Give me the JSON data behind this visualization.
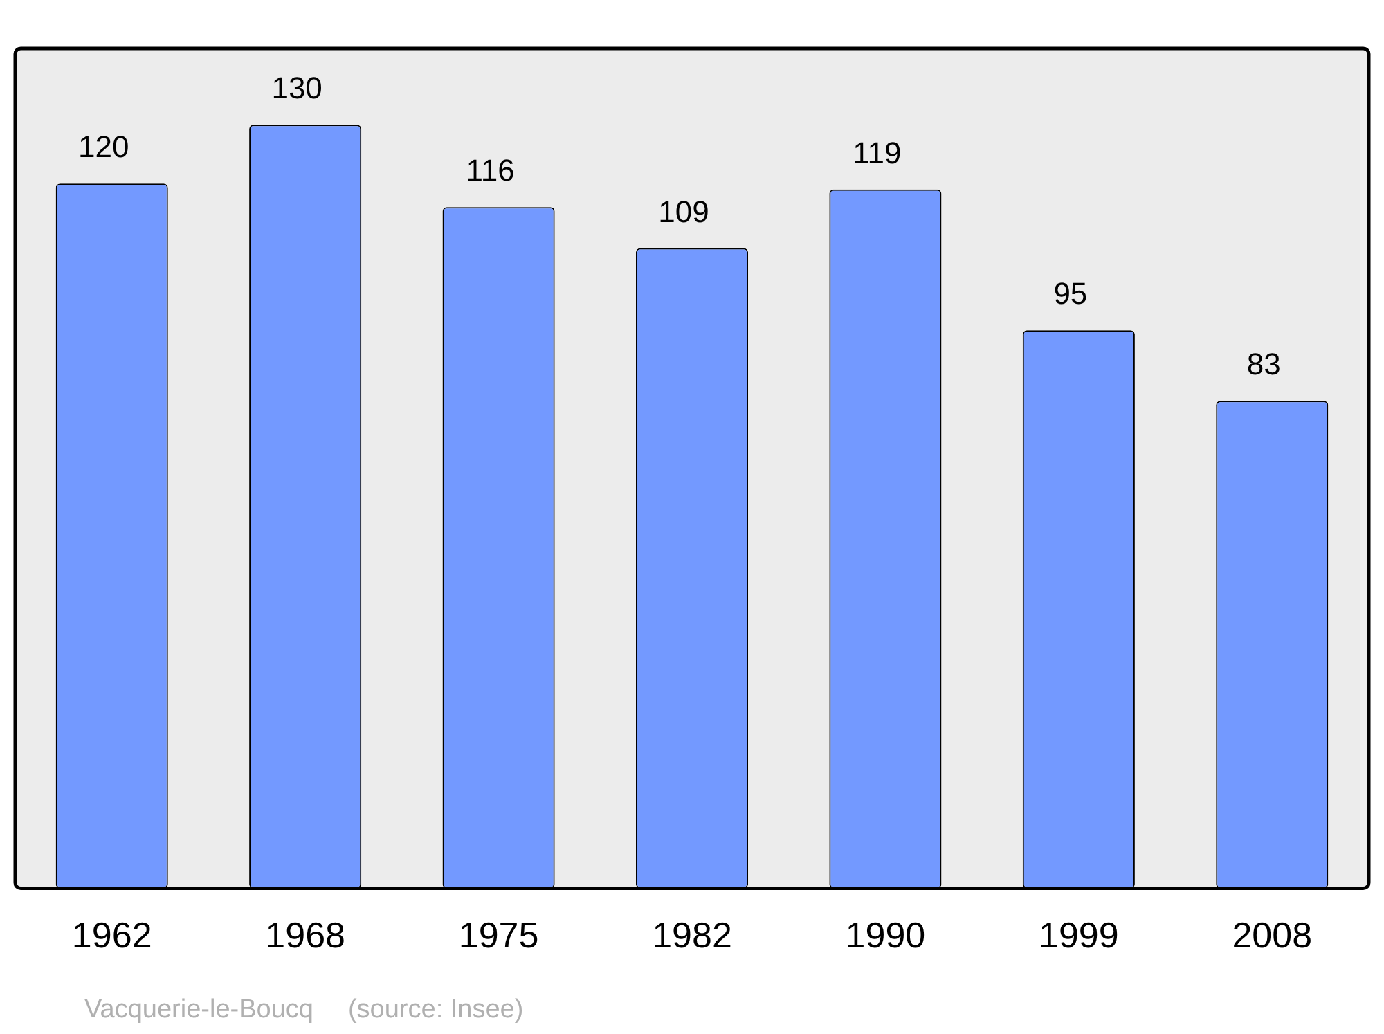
{
  "chart_data": {
    "type": "bar",
    "categories": [
      "1962",
      "1968",
      "1975",
      "1982",
      "1990",
      "1999",
      "2008"
    ],
    "values": [
      120,
      130,
      116,
      109,
      119,
      95,
      83
    ],
    "color": "#7399ff",
    "ylim": [
      0,
      143
    ],
    "data_labels": true,
    "grid": false,
    "legend": false,
    "annotations": [
      "Vacquerie-le-Boucq",
      "(source: Insee)"
    ]
  }
}
